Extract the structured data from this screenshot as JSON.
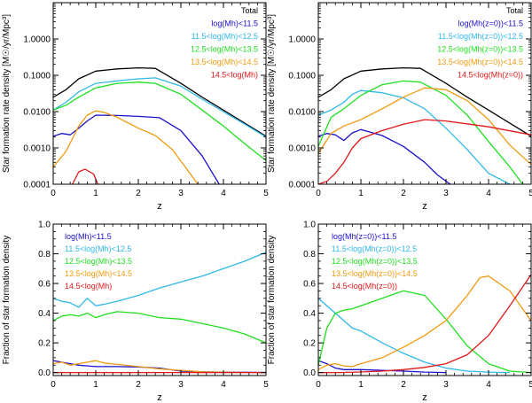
{
  "figure": {
    "colors": {
      "Total": "#000000",
      "c1": "#1a10cc",
      "c2": "#2fb8e8",
      "c3": "#1fe01f",
      "c4": "#f09a10",
      "c5": "#e01818"
    }
  },
  "chart_data": [
    {
      "type": "line",
      "log_y": true,
      "xlabel": "z",
      "ylabel": "Star formation rate density [M☉/yr/Mpc³]",
      "xlim": [
        0,
        5
      ],
      "ylim": [
        0.0001,
        10
      ],
      "xticks": [
        "0",
        "1",
        "2",
        "3",
        "4",
        "5"
      ],
      "yticks": [
        "0.0001",
        "0.0010",
        "0.0100",
        "0.1000",
        "1.0000"
      ],
      "ytick_values": [
        0.0001,
        0.001,
        0.01,
        0.1,
        1
      ],
      "legend_placement": "top-right",
      "series": [
        {
          "name": "Total",
          "color_key": "Total",
          "x": [
            0,
            0.3,
            0.6,
            1.0,
            1.5,
            2.0,
            2.4,
            3.0,
            3.5,
            4.0,
            4.5,
            5.0
          ],
          "y": [
            0.025,
            0.04,
            0.08,
            0.13,
            0.15,
            0.16,
            0.155,
            0.06,
            0.025,
            0.011,
            0.0048,
            0.0021
          ]
        },
        {
          "name": "log(Mh)<11.5",
          "color_key": "c1",
          "x": [
            0,
            0.2,
            0.4,
            0.6,
            0.8,
            1.0,
            1.5,
            2.0,
            2.5,
            3.0,
            3.5,
            3.9
          ],
          "y": [
            0.0021,
            0.0025,
            0.0023,
            0.0035,
            0.0055,
            0.008,
            0.0078,
            0.0074,
            0.0068,
            0.003,
            0.0006,
            0.0001
          ]
        },
        {
          "name": "11.5<log(Mh)<12.5",
          "color_key": "c2",
          "x": [
            0,
            0.3,
            0.6,
            1.0,
            1.5,
            2.0,
            2.4,
            3.0,
            3.5,
            4.0,
            4.5,
            5.0
          ],
          "y": [
            0.011,
            0.018,
            0.035,
            0.06,
            0.07,
            0.08,
            0.085,
            0.05,
            0.022,
            0.01,
            0.0045,
            0.002
          ]
        },
        {
          "name": "12.5<log(Mh)<13.5",
          "color_key": "c3",
          "x": [
            0,
            0.3,
            0.6,
            1.0,
            1.5,
            2.0,
            2.4,
            3.0,
            3.5,
            4.0,
            4.5,
            5.0
          ],
          "y": [
            0.011,
            0.015,
            0.025,
            0.045,
            0.06,
            0.065,
            0.06,
            0.03,
            0.011,
            0.004,
            0.0013,
            0.00045
          ]
        },
        {
          "name": "13.5<log(Mh)<14.5",
          "color_key": "c4",
          "x": [
            0,
            0.3,
            0.6,
            0.8,
            1.0,
            1.2,
            1.5,
            2.0,
            2.4,
            2.8,
            3.1,
            3.4
          ],
          "y": [
            0.0003,
            0.0008,
            0.004,
            0.008,
            0.0105,
            0.0095,
            0.007,
            0.0035,
            0.0022,
            0.0009,
            0.0003,
            0.0001
          ]
        },
        {
          "name": "14.5<log(Mh)",
          "color_key": "c5",
          "x": [
            0.45,
            0.6,
            0.75,
            0.95,
            1.05
          ],
          "y": [
            0.0001,
            0.00022,
            0.00026,
            0.00019,
            0.0001
          ]
        }
      ]
    },
    {
      "type": "line",
      "log_y": true,
      "xlabel": "z",
      "ylabel": "Star formation rate density [M☉/yr/Mpc³]",
      "xlim": [
        0,
        5
      ],
      "ylim": [
        0.0001,
        10
      ],
      "xticks": [
        "0",
        "1",
        "2",
        "3",
        "4",
        "5"
      ],
      "yticks": [
        "0.0001",
        "0.0010",
        "0.0100",
        "0.1000",
        "1.0000"
      ],
      "ytick_values": [
        0.0001,
        0.001,
        0.01,
        0.1,
        1
      ],
      "legend_placement": "top-right",
      "series": [
        {
          "name": "Total",
          "color_key": "Total",
          "x": [
            0,
            0.3,
            0.6,
            1.0,
            1.5,
            2.0,
            2.4,
            3.0,
            3.5,
            4.0,
            4.5,
            5.0
          ],
          "y": [
            0.025,
            0.04,
            0.08,
            0.13,
            0.15,
            0.16,
            0.155,
            0.06,
            0.025,
            0.011,
            0.0048,
            0.0021
          ]
        },
        {
          "name": "log(Mh(z=0))<11.5",
          "color_key": "c1",
          "x": [
            0,
            0.2,
            0.4,
            0.6,
            0.8,
            1.0,
            1.5,
            2.0,
            2.5,
            2.8,
            3.1
          ],
          "y": [
            0.0021,
            0.0025,
            0.0023,
            0.0016,
            0.0026,
            0.0032,
            0.0022,
            0.0011,
            0.0004,
            0.00018,
            0.0001
          ]
        },
        {
          "name": "11.5<log(Mh(z=0))<12.5",
          "color_key": "c2",
          "x": [
            0,
            0.3,
            0.6,
            0.8,
            1.0,
            1.5,
            2.0,
            2.5,
            3.0,
            3.5,
            4.0,
            4.5
          ],
          "y": [
            0.008,
            0.011,
            0.018,
            0.03,
            0.038,
            0.033,
            0.024,
            0.012,
            0.0035,
            0.0009,
            0.0002,
            0.0001
          ]
        },
        {
          "name": "12.5<log(Mh(z=0))<13.5",
          "color_key": "c3",
          "x": [
            0,
            0.3,
            0.6,
            1.0,
            1.5,
            2.0,
            2.4,
            3.0,
            3.5,
            4.0,
            4.5,
            4.8
          ],
          "y": [
            0.0011,
            0.007,
            0.012,
            0.028,
            0.055,
            0.07,
            0.065,
            0.028,
            0.008,
            0.0015,
            0.0003,
            0.0001
          ]
        },
        {
          "name": "13.5<log(Mh(z=0))<14.5",
          "color_key": "c4",
          "x": [
            0,
            0.3,
            0.6,
            1.0,
            1.5,
            2.0,
            2.5,
            3.0,
            3.5,
            4.0,
            4.5,
            5.0
          ],
          "y": [
            0.0007,
            0.0025,
            0.004,
            0.006,
            0.012,
            0.025,
            0.045,
            0.04,
            0.02,
            0.006,
            0.0012,
            0.00035
          ]
        },
        {
          "name": "14.5<log(Mh(z=0))",
          "color_key": "c5",
          "x": [
            0,
            0.2,
            0.4,
            0.6,
            0.8,
            1.0,
            1.5,
            2.0,
            2.5,
            3.0,
            4.0,
            5.0
          ],
          "y": [
            0.0001,
            0.00012,
            0.0002,
            0.0004,
            0.001,
            0.0018,
            0.003,
            0.0045,
            0.006,
            0.0055,
            0.0038,
            0.0023
          ]
        }
      ]
    },
    {
      "type": "line",
      "log_y": false,
      "xlabel": "z",
      "ylabel": "Fraction of star formation density",
      "xlim": [
        0,
        5
      ],
      "ylim": [
        -0.02,
        1.0
      ],
      "xticks": [
        "0",
        "1",
        "2",
        "3",
        "4",
        "5"
      ],
      "yticks": [
        "0.0",
        "0.2",
        "0.4",
        "0.6",
        "0.8",
        "1.0"
      ],
      "ytick_values": [
        0,
        0.2,
        0.4,
        0.6,
        0.8,
        1.0
      ],
      "legend_placement": "top-left",
      "series": [
        {
          "name": "log(Mh)<11.5",
          "color_key": "c1",
          "x": [
            0,
            0.2,
            0.4,
            0.6,
            0.8,
            1.0,
            1.5,
            2.0,
            2.5,
            3.0,
            3.5,
            4.0,
            4.5,
            5.0
          ],
          "y": [
            0.08,
            0.07,
            0.06,
            0.05,
            0.045,
            0.04,
            0.04,
            0.038,
            0.03,
            0.01,
            0.005,
            0.003,
            0.002,
            0.001
          ]
        },
        {
          "name": "11.5<log(Mh)<12.5",
          "color_key": "c2",
          "x": [
            0,
            0.2,
            0.4,
            0.6,
            0.8,
            1.0,
            1.2,
            1.5,
            2.0,
            2.5,
            3.0,
            3.5,
            4.0,
            4.5,
            5.0
          ],
          "y": [
            0.5,
            0.48,
            0.47,
            0.44,
            0.5,
            0.45,
            0.46,
            0.48,
            0.52,
            0.57,
            0.61,
            0.65,
            0.7,
            0.75,
            0.81
          ]
        },
        {
          "name": "12.5<log(Mh)<13.5",
          "color_key": "c3",
          "x": [
            0,
            0.2,
            0.4,
            0.6,
            0.8,
            1.0,
            1.2,
            1.5,
            2.0,
            2.5,
            3.0,
            3.5,
            4.0,
            4.5,
            5.0
          ],
          "y": [
            0.35,
            0.38,
            0.39,
            0.38,
            0.4,
            0.37,
            0.39,
            0.41,
            0.4,
            0.37,
            0.36,
            0.33,
            0.3,
            0.26,
            0.2
          ]
        },
        {
          "name": "13.5<log(Mh)<14.5",
          "color_key": "c4",
          "x": [
            0,
            0.2,
            0.4,
            0.6,
            0.8,
            1.0,
            1.2,
            1.5,
            2.0,
            2.5,
            3.0,
            3.5,
            4.0,
            4.5,
            5.0
          ],
          "y": [
            0.06,
            0.07,
            0.05,
            0.06,
            0.07,
            0.08,
            0.065,
            0.055,
            0.04,
            0.025,
            0.015,
            0.005,
            0.002,
            0.001,
            0.0
          ]
        },
        {
          "name": "14.5<log(Mh)",
          "color_key": "c5",
          "x": [
            0,
            5.0
          ],
          "y": [
            0.0,
            0.0
          ]
        }
      ]
    },
    {
      "type": "line",
      "log_y": false,
      "xlabel": "z",
      "ylabel": "Fraction of star formation density",
      "xlim": [
        0,
        5
      ],
      "ylim": [
        -0.02,
        1.0
      ],
      "xticks": [
        "0",
        "1",
        "2",
        "3",
        "4",
        "5"
      ],
      "yticks": [
        "0.0",
        "0.2",
        "0.4",
        "0.6",
        "0.8",
        "1.0"
      ],
      "ytick_values": [
        0,
        0.2,
        0.4,
        0.6,
        0.8,
        1.0
      ],
      "legend_placement": "top-left",
      "series": [
        {
          "name": "log(Mh(z=0))<11.5",
          "color_key": "c1",
          "x": [
            0,
            0.2,
            0.4,
            0.6,
            0.8,
            1.0,
            1.5,
            2.0,
            2.5,
            3.0
          ],
          "y": [
            0.08,
            0.06,
            0.03,
            0.02,
            0.02,
            0.02,
            0.015,
            0.01,
            0.003,
            0.0
          ]
        },
        {
          "name": "11.5<log(Mh(z=0))<12.5",
          "color_key": "c2",
          "x": [
            0,
            0.2,
            0.4,
            0.6,
            0.8,
            1.0,
            1.5,
            2.0,
            2.5,
            3.0,
            3.5,
            4.0,
            4.5
          ],
          "y": [
            0.5,
            0.45,
            0.4,
            0.35,
            0.3,
            0.28,
            0.2,
            0.13,
            0.07,
            0.03,
            0.01,
            0.003,
            0.0
          ]
        },
        {
          "name": "12.5<log(Mh(z=0))<13.5",
          "color_key": "c3",
          "x": [
            0,
            0.2,
            0.4,
            0.6,
            0.8,
            1.0,
            1.5,
            2.0,
            2.5,
            3.0,
            3.5,
            4.0,
            4.5,
            5.0
          ],
          "y": [
            0.05,
            0.3,
            0.4,
            0.42,
            0.43,
            0.45,
            0.5,
            0.55,
            0.52,
            0.36,
            0.18,
            0.06,
            0.01,
            0.0
          ]
        },
        {
          "name": "13.5<log(Mh(z=0))<14.5",
          "color_key": "c4",
          "x": [
            0,
            0.2,
            0.4,
            0.6,
            0.8,
            1.0,
            1.5,
            2.0,
            2.5,
            3.0,
            3.5,
            3.8,
            4.0,
            4.5,
            5.0
          ],
          "y": [
            0.02,
            0.05,
            0.06,
            0.045,
            0.04,
            0.06,
            0.1,
            0.17,
            0.25,
            0.35,
            0.52,
            0.64,
            0.65,
            0.55,
            0.35
          ]
        },
        {
          "name": "14.5<log(Mh(z=0))",
          "color_key": "c5",
          "x": [
            0,
            0.5,
            1.0,
            1.5,
            2.0,
            2.5,
            3.0,
            3.5,
            4.0,
            4.5,
            5.0
          ],
          "y": [
            0.0,
            0.0,
            0.004,
            0.01,
            0.02,
            0.035,
            0.06,
            0.12,
            0.25,
            0.45,
            0.66
          ]
        }
      ]
    }
  ]
}
